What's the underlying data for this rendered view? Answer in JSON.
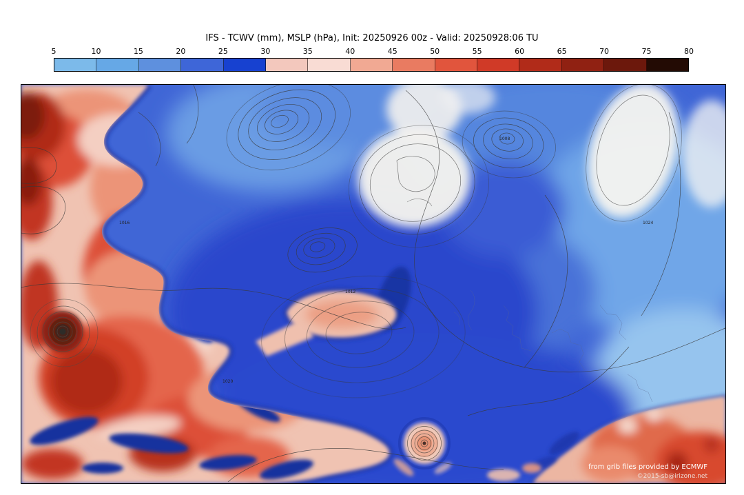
{
  "title": "IFS - TCWV (mm), MSLP (hPa), Init: 20250926 00z - Valid: 20250928:06 TU",
  "colorbar": {
    "ticks": [
      "5",
      "10",
      "15",
      "20",
      "25",
      "30",
      "35",
      "40",
      "45",
      "50",
      "55",
      "60",
      "65",
      "70",
      "75",
      "80"
    ],
    "colors": [
      "#7cbaea",
      "#66a8e6",
      "#5e90de",
      "#3e66d8",
      "#1741d0",
      "#f3c8bd",
      "#f9dcd4",
      "#f1a993",
      "#e97b61",
      "#e1553d",
      "#d03a27",
      "#b12b19",
      "#902112",
      "#6c180c",
      "#230b04"
    ]
  },
  "map": {
    "contour_labels": [
      "1016",
      "1012",
      "1020",
      "1008",
      "1024"
    ],
    "attribution_line1": "from grib files provided by ECMWF",
    "attribution_line2": "©2015-sb@irizone.net"
  }
}
